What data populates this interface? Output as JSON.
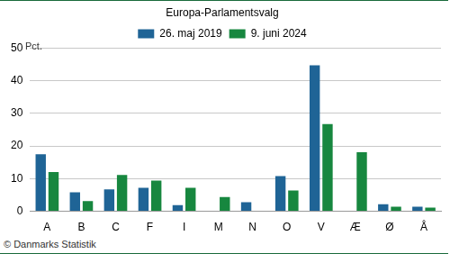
{
  "chart_data": {
    "type": "bar",
    "title": "Europa-Parlamentsvalg",
    "ylabel": "Pct.",
    "source": "© Danmarks Statistik",
    "categories": [
      "A",
      "B",
      "C",
      "F",
      "I",
      "M",
      "N",
      "O",
      "V",
      "Æ",
      "Ø",
      "Å"
    ],
    "series": [
      {
        "name": "26. maj 2019",
        "color": "#1f6496",
        "values": [
          17.5,
          5.8,
          6.7,
          7.2,
          1.9,
          null,
          2.8,
          10.8,
          44.7,
          null,
          2.2,
          1.4
        ]
      },
      {
        "name": "9. juni 2024",
        "color": "#17873f",
        "values": [
          12.0,
          3.1,
          11.1,
          9.4,
          7.2,
          4.4,
          null,
          6.4,
          26.7,
          18.1,
          1.4,
          1.1
        ]
      }
    ],
    "ylim": [
      0,
      50
    ],
    "yticks": [
      0,
      10,
      20,
      30,
      40,
      50
    ],
    "grid": true,
    "legend": "top"
  }
}
